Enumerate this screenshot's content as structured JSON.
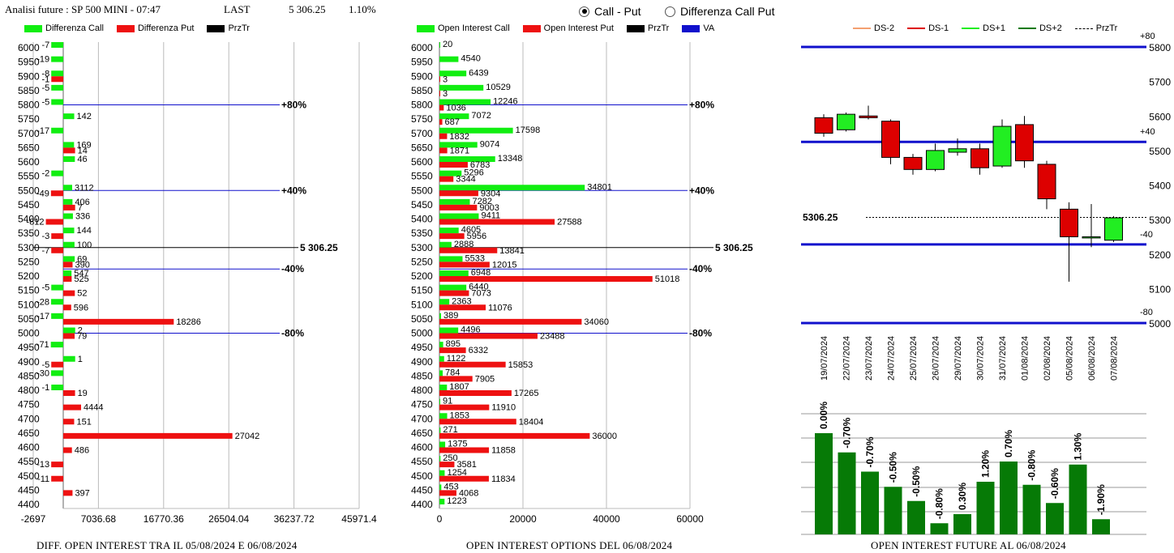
{
  "header": {
    "title": "Analisi future : SP 500 MINI - 07:47",
    "last_label": "LAST",
    "last_value": "5 306.25",
    "change": "1.10%"
  },
  "mode": {
    "options": [
      {
        "label": "Call - Put",
        "selected": true
      },
      {
        "label": "Differenza Call Put",
        "selected": false
      }
    ]
  },
  "colors": {
    "call": "#11ee11",
    "put": "#ee1111",
    "price": "#000000",
    "va": "#1010cc",
    "ds_minus2": "#f4a070",
    "ds_minus1": "#dd0000",
    "ds_plus1": "#22ee22",
    "ds_plus2": "#0a7a0a",
    "future_bar": "#067a06"
  },
  "chart_data": [
    {
      "type": "bar",
      "id": "diff_oi",
      "title": "DIFF. OPEN INTEREST TRA IL 05/08/2024 E 06/08/2024",
      "legend": [
        "Differenza Call",
        "Differenza Put",
        "PrzTr"
      ],
      "xticks": [
        "-2697",
        "7036.68",
        "16770.36",
        "26504.04",
        "36237.72",
        "45971.4"
      ],
      "xlim": [
        -2697,
        45971.4
      ],
      "categories": [
        6000,
        5950,
        5900,
        5850,
        5800,
        5750,
        5700,
        5650,
        5600,
        5550,
        5500,
        5450,
        5400,
        5350,
        5300,
        5250,
        5200,
        5150,
        5100,
        5050,
        5000,
        4950,
        4900,
        4850,
        4800,
        4750,
        4700,
        4650,
        4600,
        4550,
        4500,
        4450,
        4400
      ],
      "series": [
        {
          "name": "Differenza Call",
          "values": [
            -7,
            -19,
            -8,
            -5,
            -5,
            142,
            -17,
            169,
            46,
            -2,
            3112,
            406,
            336,
            144,
            100,
            69,
            547,
            -5,
            -28,
            -17,
            2,
            -71,
            1,
            -30,
            -1,
            null,
            null,
            null,
            null,
            null,
            null,
            null,
            null
          ]
        },
        {
          "name": "Differenza Put",
          "values": [
            null,
            null,
            -1,
            null,
            null,
            null,
            null,
            14,
            null,
            null,
            -49,
            7,
            -812,
            -3,
            -7,
            390,
            525,
            52,
            596,
            18286,
            79,
            null,
            -5,
            null,
            19,
            4444,
            151,
            27042,
            486,
            -13,
            -11,
            397,
            null
          ]
        }
      ],
      "lines": [
        {
          "price": 5800,
          "label": "+80%"
        },
        {
          "price": 5500,
          "label": "+40%"
        },
        {
          "price": 5300,
          "label": "5 306.25"
        },
        {
          "price": 5225,
          "label": "-40%"
        },
        {
          "price": 5000,
          "label": "-80%"
        }
      ]
    },
    {
      "type": "bar",
      "id": "open_interest",
      "title": "OPEN INTEREST OPTIONS DEL 06/08/2024",
      "legend": [
        "Open Interest Call",
        "Open Interest Put",
        "PrzTr",
        "VA"
      ],
      "xticks": [
        "0",
        "20000",
        "40000",
        "60000"
      ],
      "xlim": [
        0,
        60000
      ],
      "categories": [
        6000,
        5950,
        5900,
        5850,
        5800,
        5750,
        5700,
        5650,
        5600,
        5550,
        5500,
        5450,
        5400,
        5350,
        5300,
        5250,
        5200,
        5150,
        5100,
        5050,
        5000,
        4950,
        4900,
        4850,
        4800,
        4750,
        4700,
        4650,
        4600,
        4550,
        4500,
        4450,
        4400
      ],
      "series": [
        {
          "name": "Open Interest Call",
          "values": [
            20,
            4540,
            6439,
            10529,
            12246,
            7072,
            17598,
            9074,
            13348,
            5296,
            34801,
            7282,
            9411,
            4605,
            2888,
            5533,
            6948,
            6440,
            2363,
            389,
            4496,
            895,
            1122,
            784,
            1807,
            91,
            1853,
            271,
            1375,
            250,
            1254,
            453,
            1223
          ]
        },
        {
          "name": "Open Interest Put",
          "values": [
            null,
            null,
            3,
            3,
            1036,
            687,
            1832,
            1871,
            6783,
            3344,
            9304,
            9003,
            27588,
            5956,
            13841,
            12015,
            51018,
            7073,
            11076,
            34060,
            23488,
            6332,
            15853,
            7905,
            17265,
            11910,
            18404,
            36000,
            11858,
            3581,
            11834,
            4068,
            null
          ]
        }
      ],
      "lines": [
        {
          "price": 5800,
          "label": "+80%"
        },
        {
          "price": 5500,
          "label": "+40%"
        },
        {
          "price": 5300,
          "label": "5 306.25"
        },
        {
          "price": 5225,
          "label": "-40%"
        },
        {
          "price": 5000,
          "label": "-80%"
        }
      ]
    },
    {
      "type": "candlestick",
      "id": "future_price",
      "legend": [
        "DS-2",
        "DS-1",
        "DS+1",
        "DS+2",
        "PrzTr"
      ],
      "ylim": [
        5000,
        5800
      ],
      "yticks": [
        "5800",
        "5700",
        "5600",
        "5500",
        "5400",
        "5300",
        "5200",
        "5100",
        "5000"
      ],
      "band_labels": [
        "+80",
        "+40",
        "-40",
        "-80"
      ],
      "band_values": [
        5800,
        5525,
        5228,
        5000
      ],
      "price_label": "5306.25",
      "price": 5306.25,
      "categories": [
        "19/07/2024",
        "22/07/2024",
        "23/07/2024",
        "24/07/2024",
        "25/07/2024",
        "26/07/2024",
        "29/07/2024",
        "30/07/2024",
        "31/07/2024",
        "01/08/2024",
        "02/08/2024",
        "05/08/2024",
        "06/08/2024",
        "07/08/2024"
      ],
      "ohlc": [
        [
          5595,
          5605,
          5540,
          5550
        ],
        [
          5560,
          5610,
          5555,
          5605
        ],
        [
          5600,
          5630,
          5590,
          5595
        ],
        [
          5585,
          5590,
          5460,
          5480
        ],
        [
          5480,
          5490,
          5430,
          5445
        ],
        [
          5445,
          5520,
          5440,
          5500
        ],
        [
          5495,
          5535,
          5485,
          5505
        ],
        [
          5505,
          5520,
          5430,
          5450
        ],
        [
          5455,
          5590,
          5450,
          5570
        ],
        [
          5575,
          5600,
          5450,
          5470
        ],
        [
          5460,
          5470,
          5330,
          5360
        ],
        [
          5330,
          5350,
          5120,
          5250
        ],
        [
          5250,
          5345,
          5220,
          5250
        ],
        [
          5240,
          5310,
          5235,
          5305
        ]
      ]
    },
    {
      "type": "bar",
      "id": "future_oi",
      "title": "OPEN INTEREST FUTURE AL 06/08/2024",
      "categories": [
        "19/07/2024",
        "22/07/2024",
        "23/07/2024",
        "24/07/2024",
        "25/07/2024",
        "26/07/2024",
        "29/07/2024",
        "30/07/2024",
        "31/07/2024",
        "01/08/2024",
        "02/08/2024",
        "05/08/2024",
        "06/08/2024"
      ],
      "values": [
        100,
        81,
        62,
        47,
        33,
        11,
        20,
        52,
        72,
        49,
        31,
        69,
        15
      ],
      "value_labels": [
        "0.00%",
        "-0.70%",
        "-0.70%",
        "-0.50%",
        "-0.50%",
        "-0.80%",
        "0.30%",
        "1.20%",
        "0.70%",
        "-0.80%",
        "-0.60%",
        "1.30%",
        "-1.90%"
      ]
    }
  ]
}
